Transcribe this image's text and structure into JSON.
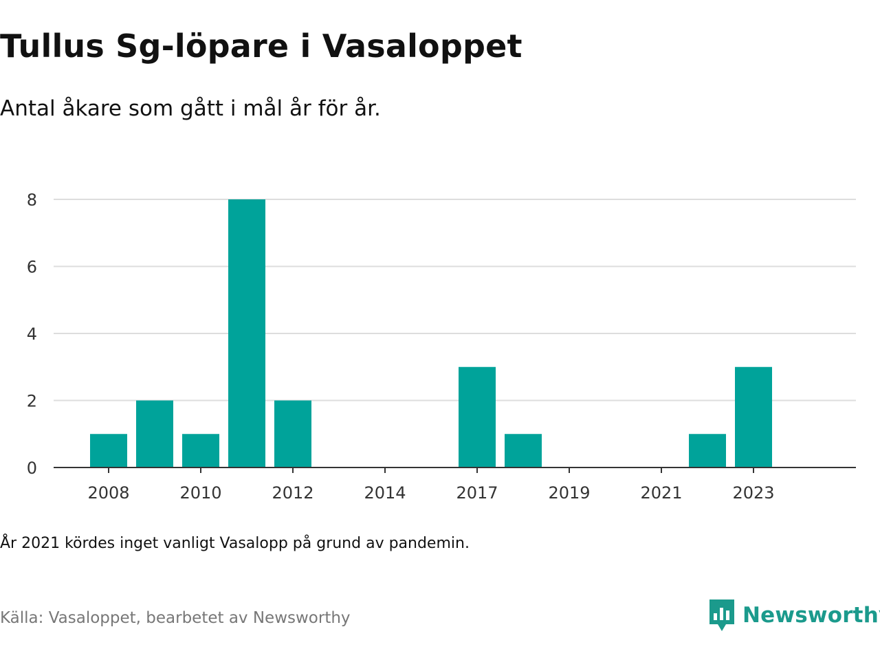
{
  "header": {
    "title": "Tullus Sg-löpare i Vasaloppet",
    "subtitle": "Antal åkare som gått i mål år för år."
  },
  "chart_data": {
    "type": "bar",
    "title": "Tullus Sg-löpare i Vasaloppet",
    "subtitle": "Antal åkare som gått i mål år för år.",
    "categories": [
      "2008",
      "2009",
      "2010",
      "2011",
      "2012",
      "2013",
      "2014",
      "2015",
      "2017",
      "2018",
      "2019",
      "2020",
      "2021",
      "2022",
      "2023"
    ],
    "values": [
      1,
      2,
      1,
      8,
      2,
      0,
      0,
      0,
      3,
      1,
      0,
      0,
      0,
      1,
      3
    ],
    "x_tick_labels": [
      "2008",
      "2010",
      "2012",
      "2014",
      "2017",
      "2019",
      "2021",
      "2023"
    ],
    "y_ticks": [
      0,
      2,
      4,
      6,
      8
    ],
    "ylim": [
      0,
      8
    ],
    "xlabel": "",
    "ylabel": "",
    "grid": true,
    "bar_color": "#00a39a",
    "grid_color": "#dddddd"
  },
  "footer": {
    "note": "År 2021 kördes inget vanligt Vasalopp på grund av pandemin.",
    "source": "Källa: Vasaloppet, bearbetet av Newsworthy",
    "brand": "Newsworthy",
    "brand_color": "#1b9a8c",
    "brand_icon": "newsworthy-logo-icon"
  }
}
